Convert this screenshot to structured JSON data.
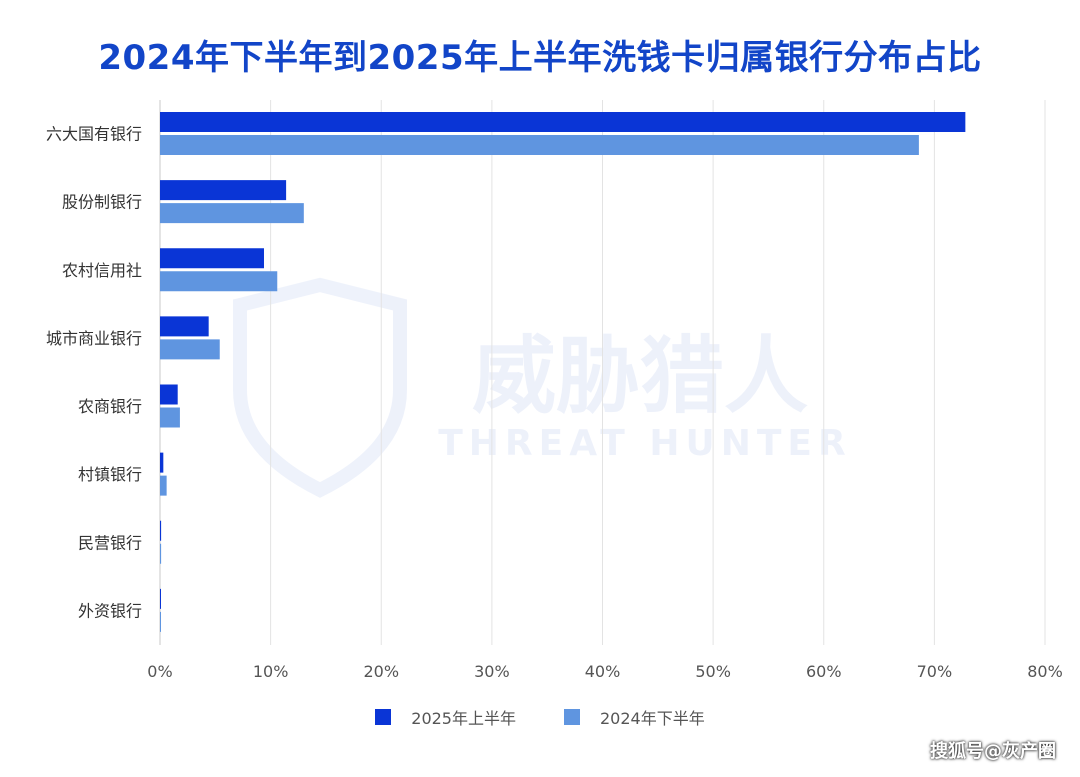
{
  "title": "2024年下半年到2025年上半年洗钱卡归属银行分布占比",
  "watermark": {
    "cn": "威胁猎人",
    "en": "THREAT HUNTER"
  },
  "source": "搜狐号@灰产圈",
  "colors": {
    "series_2025": "#0a35d6",
    "series_2024": "#5f95e0",
    "title": "#1245c8",
    "grid": "#e3e3e3"
  },
  "chart_data": {
    "type": "bar",
    "orientation": "horizontal",
    "categories": [
      "六大国有银行",
      "股份制银行",
      "农村信用社",
      "城市商业银行",
      "农商银行",
      "村镇银行",
      "民营银行",
      "外资银行"
    ],
    "series": [
      {
        "name": "2025年上半年",
        "values": [
          72.8,
          11.4,
          9.4,
          4.4,
          1.6,
          0.3,
          0.1,
          0.05
        ]
      },
      {
        "name": "2024年下半年",
        "values": [
          68.6,
          13.0,
          10.6,
          5.4,
          1.8,
          0.6,
          0.1,
          0.05
        ]
      }
    ],
    "xlim": [
      0,
      80
    ],
    "xticks": [
      "0%",
      "10%",
      "20%",
      "30%",
      "40%",
      "50%",
      "60%",
      "70%",
      "80%"
    ],
    "grid": true,
    "legend_position": "bottom"
  }
}
